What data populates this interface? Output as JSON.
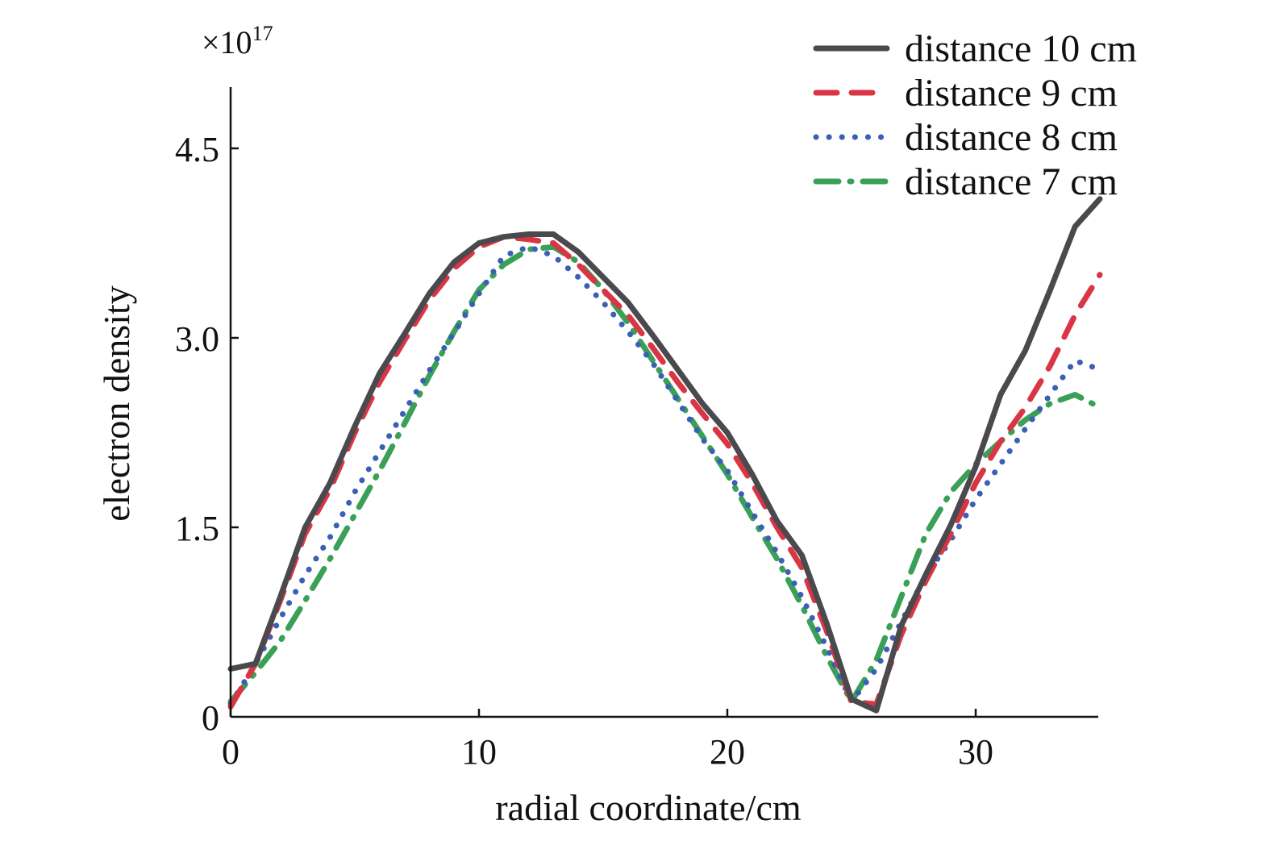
{
  "chart_data": {
    "type": "line",
    "xlabel": "radial coordinate/cm",
    "ylabel": "electron density",
    "y_multiplier": "×10",
    "y_multiplier_exponent": "17",
    "xlim": [
      0,
      35
    ],
    "ylim": [
      0,
      5
    ],
    "x_ticks": [
      "0",
      "10",
      "20",
      "30"
    ],
    "y_ticks": [
      "0",
      "1.5",
      "3.0",
      "4.5"
    ],
    "x_tick_values": [
      0,
      10,
      20,
      30
    ],
    "y_tick_values": [
      0,
      1.5,
      3.0,
      4.5
    ],
    "grid": false,
    "legend_position": "top-right",
    "series": [
      {
        "name": "distance 10 cm",
        "color": "#4a4a4e",
        "style": "solid",
        "x": [
          0,
          1,
          2,
          3,
          4,
          5,
          6,
          7,
          8,
          9,
          10,
          11,
          12,
          13,
          14,
          15,
          16,
          17,
          18,
          19,
          20,
          21,
          22,
          23,
          24,
          25,
          26,
          27,
          28,
          29,
          30,
          31,
          32,
          33,
          34,
          35
        ],
        "y": [
          0.38,
          0.42,
          0.95,
          1.5,
          1.85,
          2.3,
          2.72,
          3.03,
          3.35,
          3.6,
          3.75,
          3.8,
          3.82,
          3.82,
          3.68,
          3.48,
          3.28,
          3.02,
          2.75,
          2.48,
          2.25,
          1.92,
          1.55,
          1.28,
          0.74,
          0.14,
          0.05,
          0.72,
          1.13,
          1.52,
          1.98,
          2.55,
          2.9,
          3.38,
          3.88,
          4.1
        ]
      },
      {
        "name": "distance 9 cm",
        "color": "#d93545",
        "style": "dashed",
        "x": [
          0,
          1,
          2,
          3,
          4,
          5,
          6,
          7,
          8,
          9,
          10,
          11,
          12,
          13,
          14,
          15,
          16,
          17,
          18,
          19,
          20,
          21,
          22,
          23,
          24,
          25,
          26,
          27,
          28,
          29,
          30,
          31,
          32,
          33,
          34,
          35
        ],
        "y": [
          0.08,
          0.42,
          0.92,
          1.45,
          1.8,
          2.25,
          2.65,
          2.98,
          3.3,
          3.55,
          3.72,
          3.8,
          3.78,
          3.75,
          3.58,
          3.38,
          3.18,
          2.92,
          2.65,
          2.4,
          2.16,
          1.85,
          1.5,
          1.18,
          0.68,
          0.12,
          0.1,
          0.65,
          1.08,
          1.45,
          1.85,
          2.18,
          2.45,
          2.78,
          3.18,
          3.5
        ]
      },
      {
        "name": "distance 8 cm",
        "color": "#3a5fb5",
        "style": "dotted",
        "x": [
          0,
          1,
          2,
          3,
          4,
          5,
          6,
          7,
          8,
          9,
          10,
          11,
          12,
          13,
          14,
          15,
          16,
          17,
          18,
          19,
          20,
          21,
          22,
          23,
          24,
          25,
          26,
          27,
          28,
          29,
          30,
          31,
          32,
          33,
          34,
          35
        ],
        "y": [
          0.1,
          0.42,
          0.78,
          1.12,
          1.42,
          1.78,
          2.1,
          2.42,
          2.74,
          3.04,
          3.35,
          3.65,
          3.72,
          3.65,
          3.48,
          3.28,
          3.05,
          2.8,
          2.5,
          2.2,
          1.95,
          1.62,
          1.3,
          0.95,
          0.55,
          0.12,
          0.38,
          0.75,
          1.12,
          1.4,
          1.72,
          2.0,
          2.28,
          2.55,
          2.82,
          2.75
        ]
      },
      {
        "name": "distance 7 cm",
        "color": "#3aa057",
        "style": "dashdot",
        "x": [
          0,
          1,
          2,
          3,
          4,
          5,
          6,
          7,
          8,
          9,
          10,
          11,
          12,
          13,
          14,
          15,
          16,
          17,
          18,
          19,
          20,
          21,
          22,
          23,
          24,
          25,
          26,
          27,
          28,
          29,
          30,
          31,
          32,
          33,
          34,
          35
        ],
        "y": [
          0.12,
          0.35,
          0.6,
          0.92,
          1.25,
          1.6,
          1.95,
          2.32,
          2.7,
          3.05,
          3.38,
          3.58,
          3.7,
          3.72,
          3.6,
          3.38,
          3.12,
          2.82,
          2.52,
          2.22,
          1.92,
          1.58,
          1.25,
          0.88,
          0.48,
          0.12,
          0.45,
          0.95,
          1.45,
          1.78,
          2.0,
          2.18,
          2.35,
          2.48,
          2.55,
          2.45
        ]
      }
    ]
  }
}
